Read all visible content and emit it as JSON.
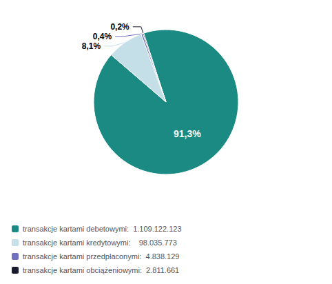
{
  "chart_data": {
    "type": "pie",
    "categories": [
      "transakcje kartami debetowymi:  1.109.122.123",
      "transakcje kartami kredytowymi:    98.035.773",
      "transakcje kartami przedpłaconymi:  4.838.129",
      "transakcje kartami obciążeniowymi:  2.811.661"
    ],
    "values": [
      91.3,
      8.1,
      0.4,
      0.2
    ],
    "value_labels": [
      "91,3%",
      "8,1%",
      "0,4%",
      "0,2%"
    ],
    "colors": [
      "#1a8a82",
      "#c5dfe8",
      "#7070c0",
      "#1a1a2e"
    ],
    "data_labels": true,
    "legend": "lower left"
  }
}
